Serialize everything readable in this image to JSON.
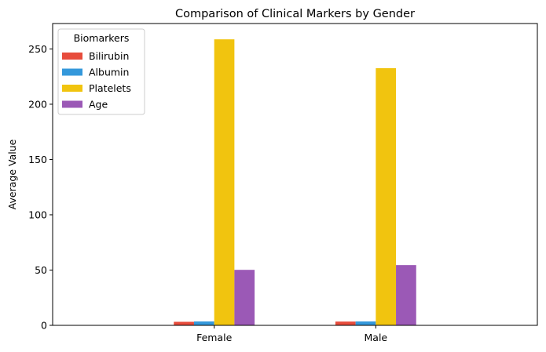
{
  "chart_data": {
    "type": "bar",
    "title": "Comparison of Clinical Markers by Gender",
    "xlabel": "",
    "ylabel": "Average Value",
    "categories": [
      "Female",
      "Male"
    ],
    "series": [
      {
        "name": "Bilirubin",
        "color": "#e74c3c",
        "values": [
          3.2,
          3.4
        ]
      },
      {
        "name": "Albumin",
        "color": "#3498db",
        "values": [
          3.5,
          3.5
        ]
      },
      {
        "name": "Platelets",
        "color": "#f1c40f",
        "values": [
          258.7,
          232.6
        ]
      },
      {
        "name": "Age",
        "color": "#9b59b6",
        "values": [
          50.2,
          54.5
        ]
      }
    ],
    "ylim": [
      0,
      273
    ],
    "yticks": [
      0,
      50,
      100,
      150,
      200,
      250
    ],
    "legend": {
      "title": "Biomarkers",
      "position": "top-left"
    },
    "grid": false
  }
}
